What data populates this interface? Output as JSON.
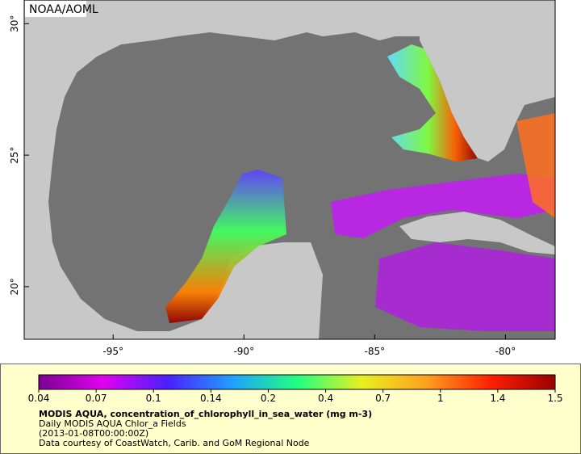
{
  "map": {
    "credit": "NOAA/AOML",
    "xlim": [
      -98.4,
      -78.1
    ],
    "ylim": [
      18,
      30.9
    ],
    "lon_ticks": [
      {
        "value": -95,
        "label": "-95°"
      },
      {
        "value": -90,
        "label": "-90°"
      },
      {
        "value": -85,
        "label": "-85°"
      },
      {
        "value": -80,
        "label": "-80°"
      }
    ],
    "lat_ticks": [
      {
        "value": 20,
        "label": "20°"
      },
      {
        "value": 25,
        "label": "25°"
      },
      {
        "value": 30,
        "label": "30°"
      }
    ]
  },
  "legend": {
    "ticks": [
      0.04,
      0.07,
      0.1,
      0.14,
      0.2,
      0.4,
      0.7,
      1,
      1.4,
      1.5
    ],
    "colors": [
      "#7a0090",
      "#e000f0",
      "#4a20ff",
      "#20a0ff",
      "#20ff80",
      "#e8f020",
      "#ffa020",
      "#ff2000",
      "#9a0000"
    ],
    "title": "MODIS AQUA, concentration_of_chlorophyll_in_sea_water (mg m-3)",
    "lines": [
      "Daily MODIS AQUA Chlor_a Fields",
      "(2013-01-08T00:00:00Z)",
      "Data courtesy of CoastWatch, Carib. and GoM Regional Node"
    ]
  }
}
